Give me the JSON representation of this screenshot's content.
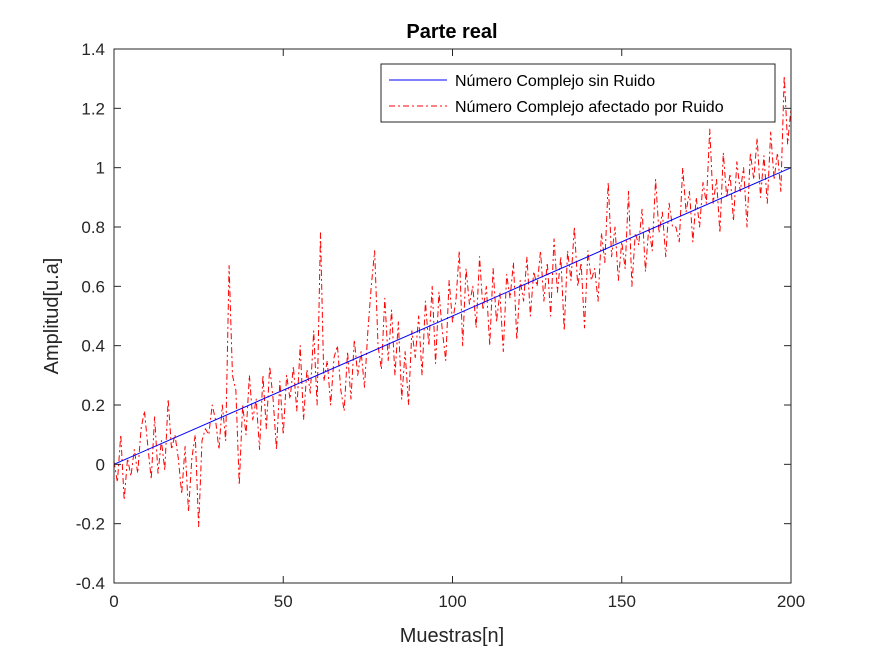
{
  "chart_data": {
    "type": "line",
    "title": "Parte real",
    "xlabel": "Muestras[n]",
    "ylabel": "Amplitud[u.a]",
    "xlim": [
      0,
      200
    ],
    "ylim": [
      -0.4,
      1.4
    ],
    "xticks": [
      0,
      50,
      100,
      150,
      200
    ],
    "yticks": [
      -0.4,
      -0.2,
      0,
      0.2,
      0.4,
      0.6,
      0.8,
      1,
      1.2,
      1.4
    ],
    "xtick_labels": [
      "0",
      "50",
      "100",
      "150",
      "200"
    ],
    "ytick_labels": [
      "-0.4",
      "-0.2",
      "0",
      "0.2",
      "0.4",
      "0.6",
      "0.8",
      "1",
      "1.2",
      "1.4"
    ],
    "grid": false,
    "legend_position": "top-right",
    "series": [
      {
        "name": "Número Complejo sin Ruido",
        "color": "#0000FF",
        "style": "solid",
        "x": [
          0,
          200
        ],
        "y": [
          0,
          1
        ]
      },
      {
        "name": "Número Complejo afectado por Ruido",
        "color": "#FF0000",
        "style": "dash-dot",
        "x": [
          0,
          1,
          2,
          3,
          4,
          5,
          6,
          7,
          8,
          9,
          10,
          11,
          12,
          13,
          14,
          15,
          16,
          17,
          18,
          19,
          20,
          21,
          22,
          23,
          24,
          25,
          26,
          27,
          28,
          29,
          30,
          31,
          32,
          33,
          34,
          35,
          36,
          37,
          38,
          39,
          40,
          41,
          42,
          43,
          44,
          45,
          46,
          47,
          48,
          49,
          50,
          51,
          52,
          53,
          54,
          55,
          56,
          57,
          58,
          59,
          60,
          61,
          62,
          63,
          64,
          65,
          66,
          67,
          68,
          69,
          70,
          71,
          72,
          73,
          74,
          75,
          76,
          77,
          78,
          79,
          80,
          81,
          82,
          83,
          84,
          85,
          86,
          87,
          88,
          89,
          90,
          91,
          92,
          93,
          94,
          95,
          96,
          97,
          98,
          99,
          100,
          101,
          102,
          103,
          104,
          105,
          106,
          107,
          108,
          109,
          110,
          111,
          112,
          113,
          114,
          115,
          116,
          117,
          118,
          119,
          120,
          121,
          122,
          123,
          124,
          125,
          126,
          127,
          128,
          129,
          130,
          131,
          132,
          133,
          134,
          135,
          136,
          137,
          138,
          139,
          140,
          141,
          142,
          143,
          144,
          145,
          146,
          147,
          148,
          149,
          150,
          151,
          152,
          153,
          154,
          155,
          156,
          157,
          158,
          159,
          160,
          161,
          162,
          163,
          164,
          165,
          166,
          167,
          168,
          169,
          170,
          171,
          172,
          173,
          174,
          175,
          176,
          177,
          178,
          179,
          180,
          181,
          182,
          183,
          184,
          185,
          186,
          187,
          188,
          189,
          190,
          191,
          192,
          193,
          194,
          195,
          196,
          197,
          198,
          199,
          200
        ],
        "y": [
          0.01,
          -0.06,
          0.1,
          -0.12,
          0.02,
          -0.04,
          0.05,
          -0.03,
          0.12,
          0.18,
          0.06,
          -0.05,
          0.16,
          -0.03,
          0.08,
          -0.02,
          0.22,
          0.05,
          0.1,
          0.02,
          -0.1,
          0.06,
          -0.16,
          0.02,
          0.1,
          -0.21,
          0.08,
          0.12,
          0.1,
          0.2,
          0.15,
          0.05,
          0.2,
          0.08,
          0.67,
          0.3,
          0.25,
          -0.07,
          0.2,
          0.1,
          0.3,
          0.15,
          0.22,
          0.05,
          0.3,
          0.12,
          0.33,
          0.22,
          0.05,
          0.28,
          0.1,
          0.3,
          0.22,
          0.33,
          0.18,
          0.4,
          0.15,
          0.32,
          0.24,
          0.45,
          0.2,
          0.78,
          0.28,
          0.35,
          0.2,
          0.36,
          0.4,
          0.25,
          0.18,
          0.38,
          0.22,
          0.42,
          0.3,
          0.38,
          0.26,
          0.45,
          0.6,
          0.72,
          0.4,
          0.32,
          0.56,
          0.35,
          0.52,
          0.3,
          0.48,
          0.22,
          0.38,
          0.2,
          0.45,
          0.36,
          0.5,
          0.3,
          0.55,
          0.4,
          0.6,
          0.34,
          0.58,
          0.45,
          0.35,
          0.62,
          0.48,
          0.55,
          0.72,
          0.4,
          0.66,
          0.54,
          0.6,
          0.46,
          0.7,
          0.52,
          0.6,
          0.4,
          0.66,
          0.48,
          0.58,
          0.38,
          0.64,
          0.56,
          0.68,
          0.42,
          0.62,
          0.55,
          0.7,
          0.5,
          0.65,
          0.6,
          0.72,
          0.55,
          0.68,
          0.5,
          0.76,
          0.58,
          0.7,
          0.45,
          0.72,
          0.62,
          0.8,
          0.6,
          0.68,
          0.46,
          0.72,
          0.62,
          0.66,
          0.55,
          0.78,
          0.68,
          0.95,
          0.7,
          0.8,
          0.62,
          0.75,
          0.66,
          0.92,
          0.6,
          0.78,
          0.74,
          0.86,
          0.65,
          0.8,
          0.72,
          0.96,
          0.78,
          0.85,
          0.7,
          0.88,
          0.8,
          0.8,
          0.75,
          1.0,
          0.85,
          0.92,
          0.75,
          0.9,
          0.8,
          0.95,
          0.88,
          1.13,
          0.88,
          0.96,
          0.78,
          1.05,
          0.9,
          0.98,
          0.82,
          1.02,
          0.92,
          1.0,
          0.8,
          1.05,
          0.96,
          1.1,
          0.9,
          1.04,
          0.88,
          1.12,
          0.96,
          1.05,
          0.92,
          1.31,
          1.08,
          1.2
        ]
      }
    ]
  }
}
